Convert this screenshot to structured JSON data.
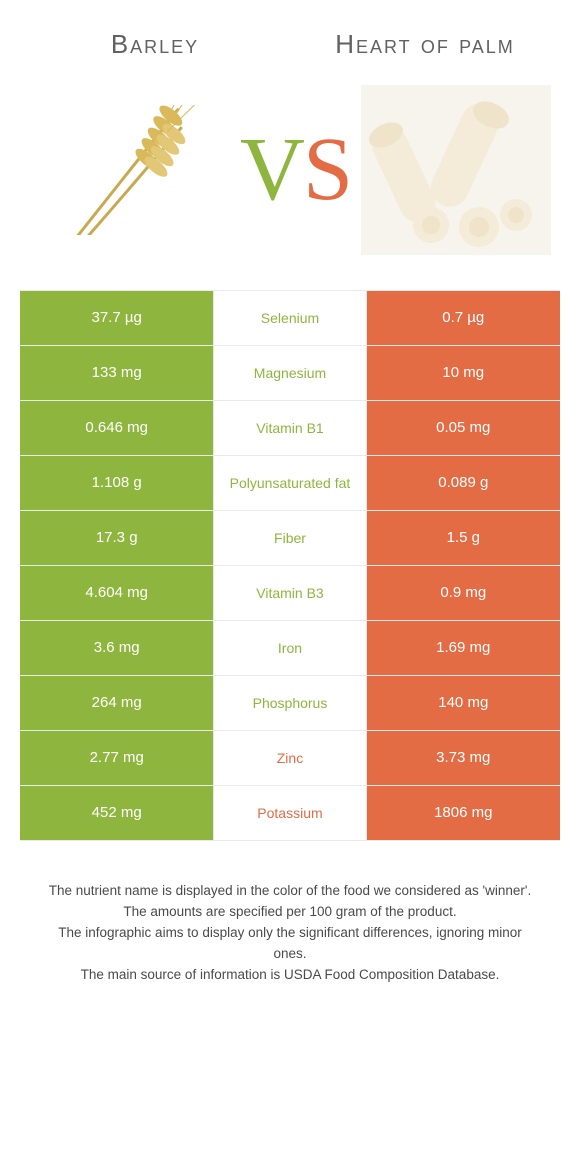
{
  "left_title": "Barley",
  "right_title": "Heart of palm",
  "vs": {
    "v": "V",
    "s": "S"
  },
  "colors": {
    "left": "#8eb63e",
    "right": "#e36c45",
    "title_text": "#616161",
    "border": "#eaeaea",
    "footer_text": "#4a4a4a",
    "background": "#ffffff"
  },
  "rows": [
    {
      "left": "37.7 µg",
      "label": "Selenium",
      "right": "0.7 µg",
      "winner": "left"
    },
    {
      "left": "133 mg",
      "label": "Magnesium",
      "right": "10 mg",
      "winner": "left"
    },
    {
      "left": "0.646 mg",
      "label": "Vitamin B1",
      "right": "0.05 mg",
      "winner": "left"
    },
    {
      "left": "1.108 g",
      "label": "Polyunsaturated fat",
      "right": "0.089 g",
      "winner": "left"
    },
    {
      "left": "17.3 g",
      "label": "Fiber",
      "right": "1.5 g",
      "winner": "left"
    },
    {
      "left": "4.604 mg",
      "label": "Vitamin B3",
      "right": "0.9 mg",
      "winner": "left"
    },
    {
      "left": "3.6 mg",
      "label": "Iron",
      "right": "1.69 mg",
      "winner": "left"
    },
    {
      "left": "264 mg",
      "label": "Phosphorus",
      "right": "140 mg",
      "winner": "left"
    },
    {
      "left": "2.77 mg",
      "label": "Zinc",
      "right": "3.73 mg",
      "winner": "right"
    },
    {
      "left": "452 mg",
      "label": "Potassium",
      "right": "1806 mg",
      "winner": "right"
    }
  ],
  "footer_lines": [
    "The nutrient name is displayed in the color of the food we considered as 'winner'.",
    "The amounts are specified per 100 gram of the product.",
    "The infographic aims to display only the significant differences, ignoring minor ones.",
    "The main source of information is USDA Food Composition Database."
  ]
}
